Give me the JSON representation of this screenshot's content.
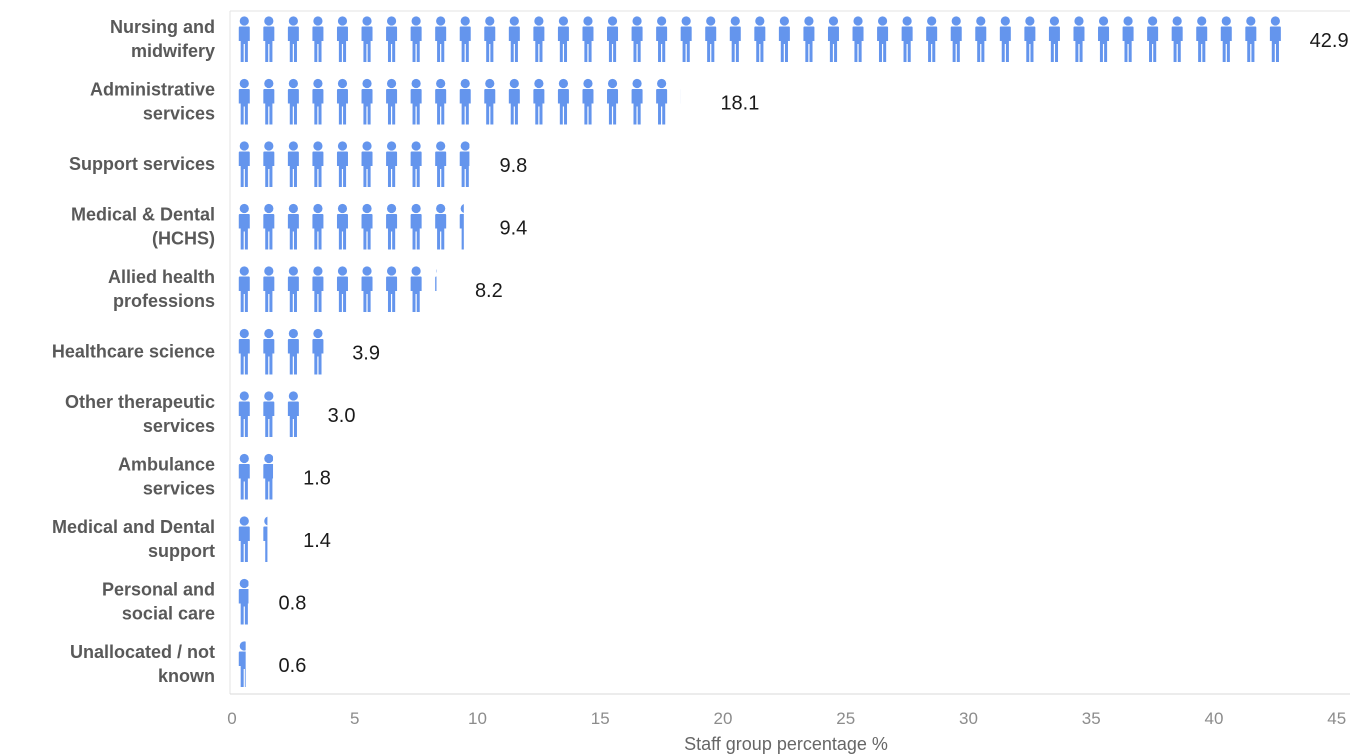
{
  "chart_data": {
    "type": "bar",
    "style": "pictogram",
    "icon": "person-icon",
    "categories": [
      [
        "Nursing and",
        "midwifery"
      ],
      [
        "Administrative",
        "services"
      ],
      [
        "Support services"
      ],
      [
        "Medical & Dental",
        "(HCHS)"
      ],
      [
        "Allied health",
        "professions"
      ],
      [
        "Healthcare science"
      ],
      [
        "Other therapeutic",
        "services"
      ],
      [
        "Ambulance",
        "services"
      ],
      [
        "Medical and Dental",
        "support"
      ],
      [
        "Personal and",
        "social care"
      ],
      [
        "Unallocated / not",
        "known"
      ]
    ],
    "values": [
      42.9,
      18.1,
      9.8,
      9.4,
      8.2,
      3.9,
      3.0,
      1.8,
      1.4,
      0.8,
      0.6
    ],
    "value_labels": [
      "42.9",
      "18.1",
      "9.8",
      "9.4",
      "8.2",
      "3.9",
      "3.0",
      "1.8",
      "1.4",
      "0.8",
      "0.6"
    ],
    "xlabel": "Staff group percentage %",
    "xlim": [
      0,
      45
    ],
    "xticks": [
      0,
      5,
      10,
      15,
      20,
      25,
      30,
      35,
      40,
      45
    ],
    "grid": false,
    "legend": "none",
    "colors": {
      "icon": "#6495ed",
      "icon_dark": "#4a7fd6",
      "axis": "#d9d9d9",
      "category_text": "#595959",
      "tick_text": "#8c8c8c",
      "value_text": "#1a1a1a"
    }
  }
}
